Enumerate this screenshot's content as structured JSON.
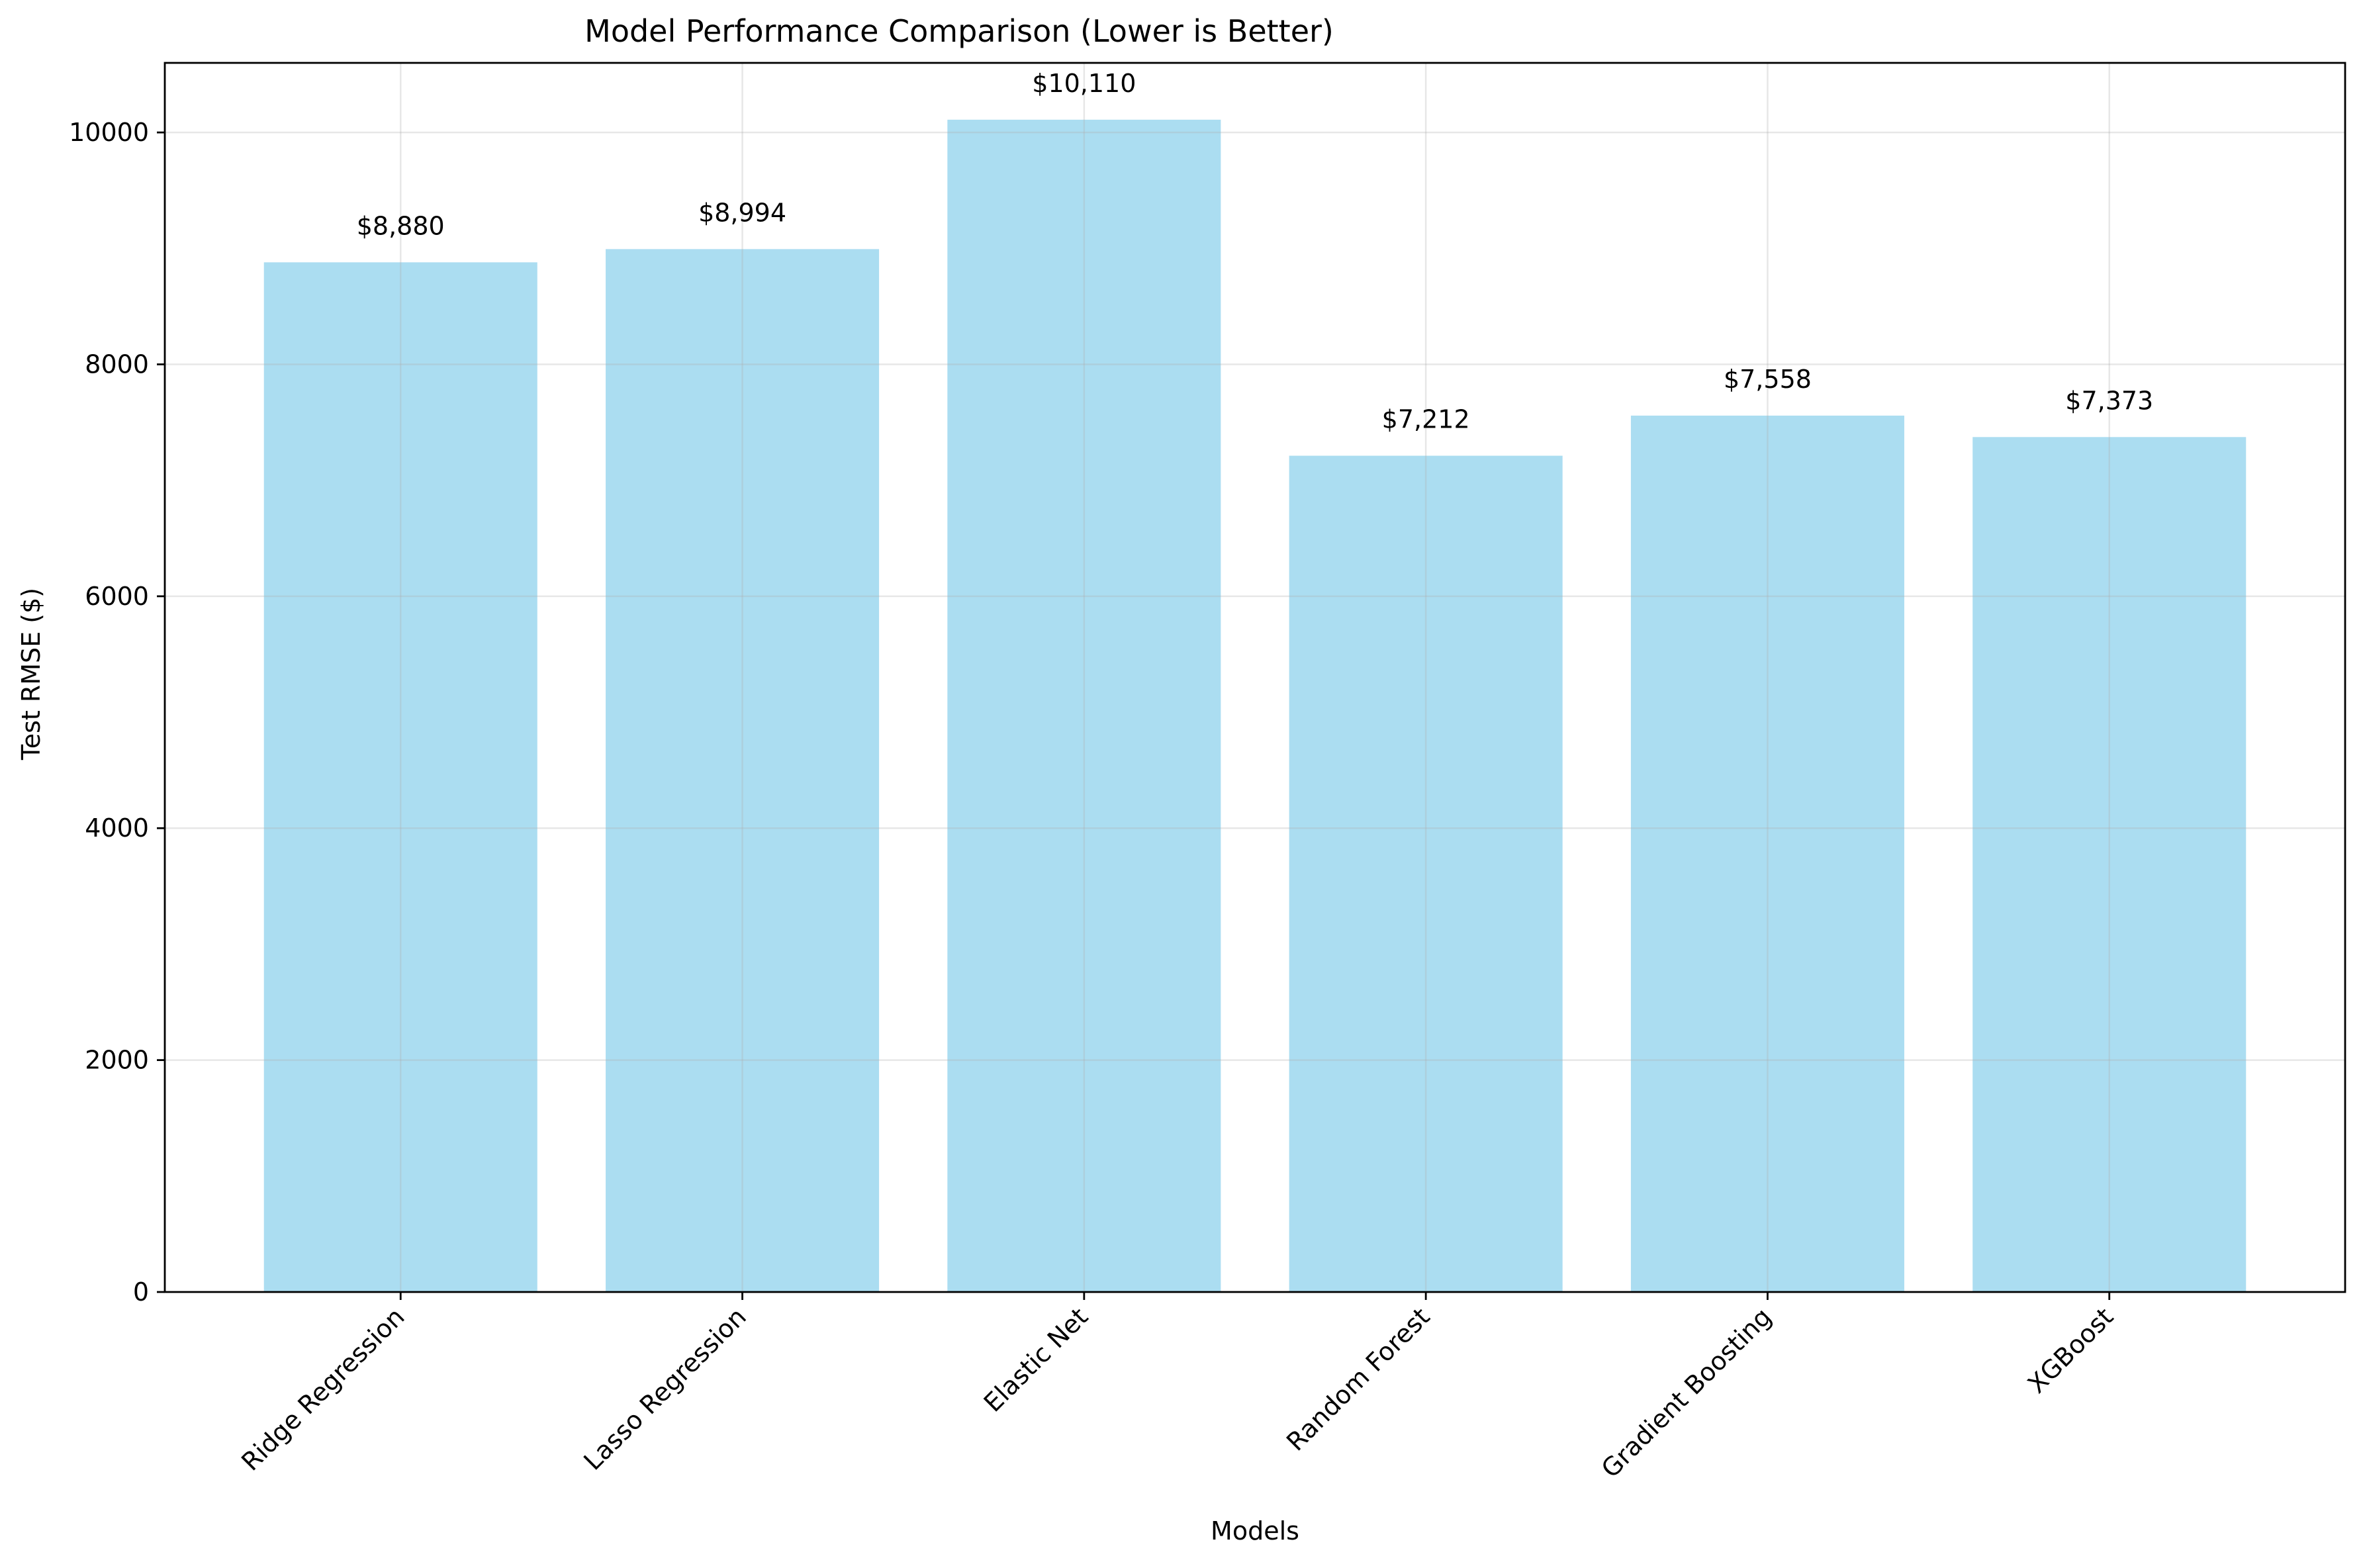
{
  "chart_data": {
    "type": "bar",
    "title": "Model Performance Comparison (Lower is Better)",
    "xlabel": "Models",
    "ylabel": "Test RMSE ($)",
    "categories": [
      "Ridge Regression",
      "Lasso Regression",
      "Elastic Net",
      "Random Forest",
      "Gradient Boosting",
      "XGBoost"
    ],
    "values": [
      8880,
      8994,
      10110,
      7212,
      7558,
      7373
    ],
    "value_labels": [
      "$8,880",
      "$8,994",
      "$10,110",
      "$7,212",
      "$7,558",
      "$7,373"
    ],
    "ylim": [
      0,
      10600
    ],
    "yticks": [
      0,
      2000,
      4000,
      6000,
      8000,
      10000
    ],
    "ytick_labels": [
      "0",
      "2000",
      "4000",
      "6000",
      "8000",
      "10000"
    ],
    "grid": true,
    "bar_color": "#87CEEB",
    "bar_opacity": 0.7,
    "xtick_rotation_deg": 45
  }
}
